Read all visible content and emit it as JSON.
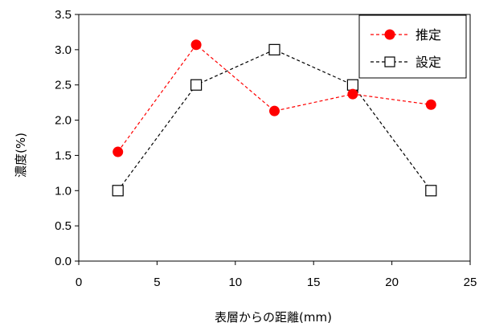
{
  "chart_data": {
    "type": "line",
    "title": "",
    "xlabel": "表層からの距離(mm)",
    "ylabel": "濃度(%)",
    "xlim": [
      0,
      25
    ],
    "ylim": [
      0,
      3.5
    ],
    "xticks": [
      "0",
      "5",
      "10",
      "15",
      "20",
      "25"
    ],
    "yticks": [
      "0.0",
      "0.5",
      "1.0",
      "1.5",
      "2.0",
      "2.5",
      "3.0",
      "3.5"
    ],
    "grid": false,
    "legend_position": "top-right",
    "series": [
      {
        "name": "推定",
        "color": "#ff0000",
        "marker": "filled-circle",
        "line_style": "dashed",
        "x": [
          2.5,
          7.5,
          12.5,
          17.5,
          22.5
        ],
        "y": [
          1.55,
          3.07,
          2.13,
          2.37,
          2.22
        ]
      },
      {
        "name": "設定",
        "color": "#000000",
        "marker": "open-square",
        "line_style": "dashed",
        "x": [
          2.5,
          7.5,
          12.5,
          17.5,
          22.5
        ],
        "y": [
          1.0,
          2.5,
          3.0,
          2.5,
          1.0
        ]
      }
    ]
  }
}
